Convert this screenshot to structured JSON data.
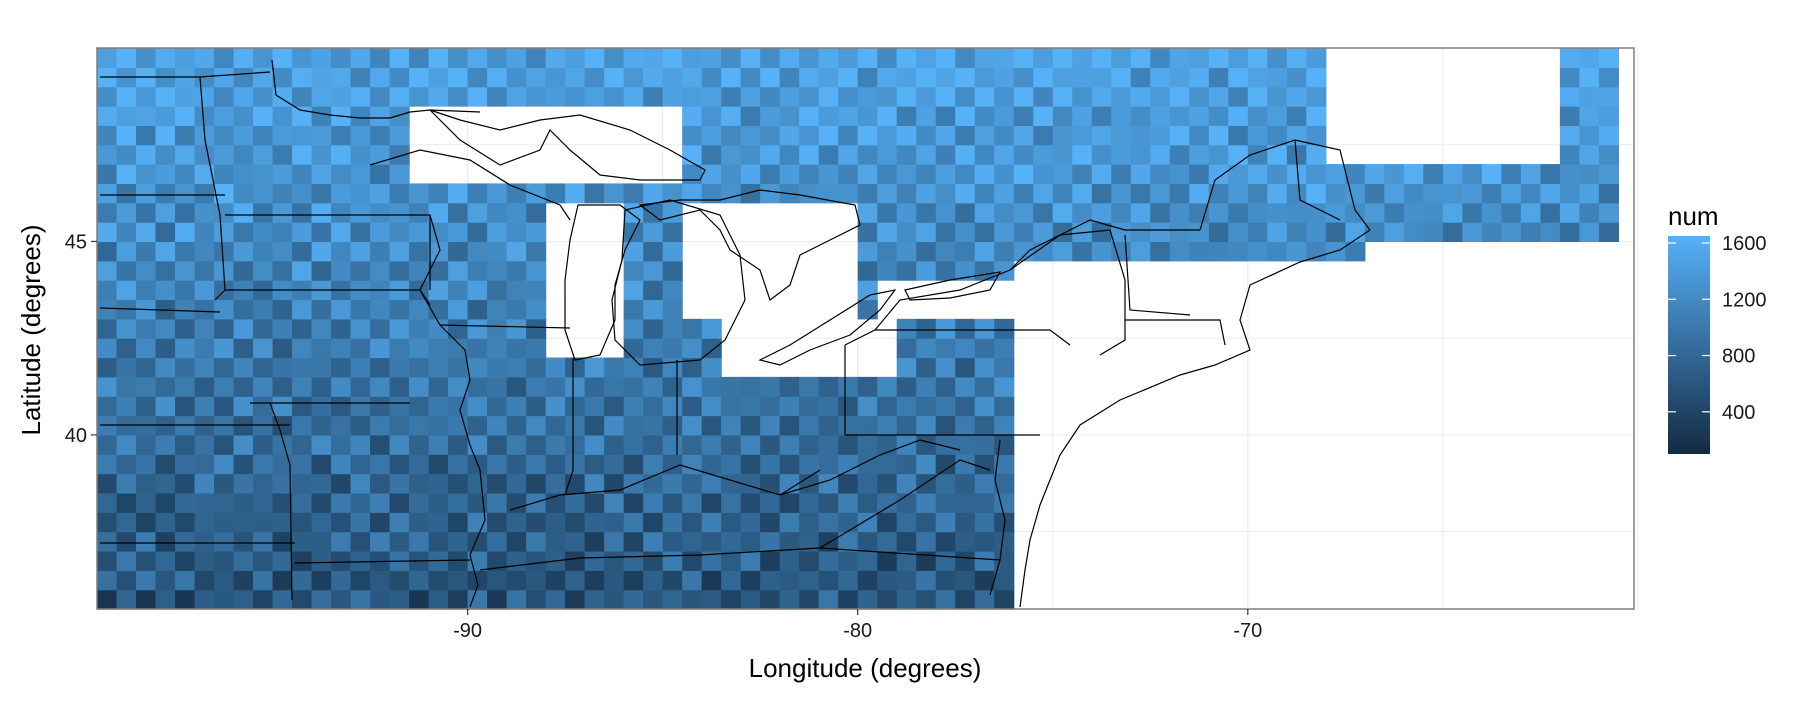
{
  "chart_data": {
    "type": "heatmap",
    "title": "",
    "xlabel": "Longitude (degrees)",
    "ylabel": "Latitude (degrees)",
    "xlim": [
      -99.5,
      -60.1
    ],
    "ylim": [
      35.5,
      50.0
    ],
    "xticks": [
      -90,
      -80,
      -70
    ],
    "xtick_labels": [
      "-90",
      "-80",
      "-70"
    ],
    "yticks": [
      40,
      45
    ],
    "ytick_labels": [
      "40",
      "45"
    ],
    "grid": true,
    "cell_size_degrees": 0.5,
    "legend": {
      "title": "num",
      "position": "right",
      "breaks": [
        400,
        800,
        1200,
        1600
      ],
      "break_labels": [
        "400",
        "800",
        "1200",
        "1600"
      ],
      "range": [
        100,
        1650
      ],
      "low_color": "#132B43",
      "high_color": "#56B1F7"
    },
    "grid_extent": {
      "lon_min": -99.25,
      "lon_max": -60.75,
      "lat_min": 35.75,
      "lat_max": 49.75
    },
    "missing_regions": [
      {
        "name": "Lake Superior",
        "lon": [
          -91.5,
          -84.5
        ],
        "lat": [
          46.3,
          48.5
        ]
      },
      {
        "name": "Lake Michigan",
        "lon": [
          -88.0,
          -86.0
        ],
        "lat": [
          41.8,
          46.0
        ]
      },
      {
        "name": "Lake Huron",
        "lon": [
          -84.5,
          -79.8
        ],
        "lat": [
          43.2,
          46.2
        ]
      },
      {
        "name": "Lake Erie",
        "lon": [
          -83.5,
          -78.9
        ],
        "lat": [
          41.4,
          43.0
        ]
      },
      {
        "name": "Lake Ontario",
        "lon": [
          -79.5,
          -76.0
        ],
        "lat": [
          43.2,
          44.2
        ]
      },
      {
        "name": "Atlantic Ocean",
        "lon": [
          -76.0,
          -60.0
        ],
        "lat": [
          35.5,
          44.5
        ]
      },
      {
        "name": "Gulf of St. Lawrence",
        "lon": [
          -68.0,
          -62.0
        ],
        "lat": [
          46.8,
          50.0
        ]
      }
    ],
    "pattern_description": "checkerboard-like variation; values decrease from ~1600 in north to ~700 in south"
  },
  "colors": {
    "panel_border": "#7f7f7f",
    "grid_line": "#ebebeb",
    "map_line": "#000000",
    "background": "#ffffff"
  }
}
